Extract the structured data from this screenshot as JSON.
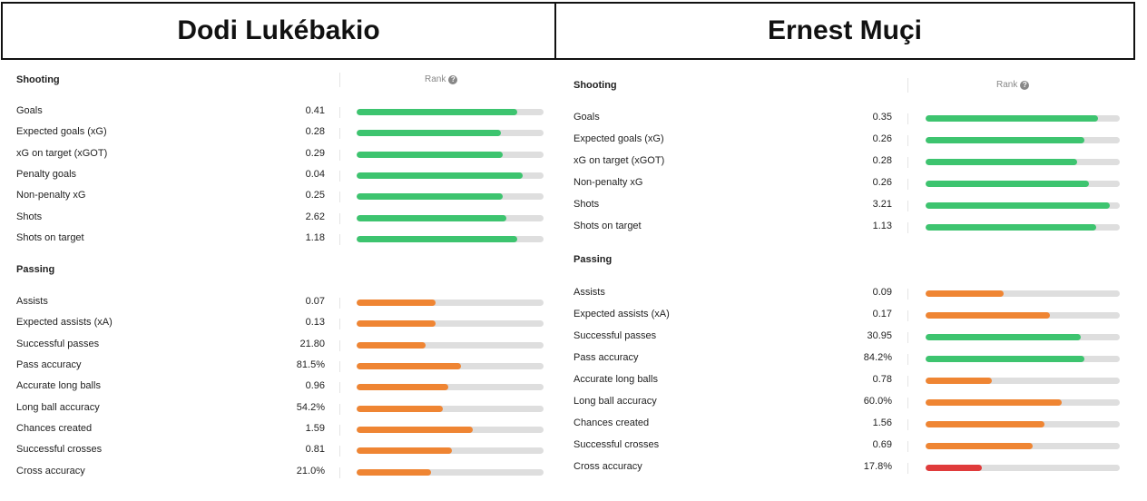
{
  "players": [
    {
      "name": "Dodi Lukébakio",
      "rank_label": "Rank",
      "sections": [
        {
          "title": "Shooting",
          "stats": [
            {
              "label": "Goals",
              "value": "0.41",
              "percentile": 0.86,
              "color": "#3dc46f"
            },
            {
              "label": "Expected goals (xG)",
              "value": "0.28",
              "percentile": 0.77,
              "color": "#3dc46f"
            },
            {
              "label": "xG on target (xGOT)",
              "value": "0.29",
              "percentile": 0.78,
              "color": "#3dc46f"
            },
            {
              "label": "Penalty goals",
              "value": "0.04",
              "percentile": 0.89,
              "color": "#3dc46f"
            },
            {
              "label": "Non-penalty xG",
              "value": "0.25",
              "percentile": 0.78,
              "color": "#3dc46f"
            },
            {
              "label": "Shots",
              "value": "2.62",
              "percentile": 0.8,
              "color": "#3dc46f"
            },
            {
              "label": "Shots on target",
              "value": "1.18",
              "percentile": 0.86,
              "color": "#3dc46f"
            }
          ]
        },
        {
          "title": "Passing",
          "stats": [
            {
              "label": "Assists",
              "value": "0.07",
              "percentile": 0.42,
              "color": "#ef8533"
            },
            {
              "label": "Expected assists (xA)",
              "value": "0.13",
              "percentile": 0.42,
              "color": "#ef8533"
            },
            {
              "label": "Successful passes",
              "value": "21.80",
              "percentile": 0.37,
              "color": "#ef8533"
            },
            {
              "label": "Pass accuracy",
              "value": "81.5%",
              "percentile": 0.56,
              "color": "#ef8533"
            },
            {
              "label": "Accurate long balls",
              "value": "0.96",
              "percentile": 0.49,
              "color": "#ef8533"
            },
            {
              "label": "Long ball accuracy",
              "value": "54.2%",
              "percentile": 0.46,
              "color": "#ef8533"
            },
            {
              "label": "Chances created",
              "value": "1.59",
              "percentile": 0.62,
              "color": "#ef8533"
            },
            {
              "label": "Successful crosses",
              "value": "0.81",
              "percentile": 0.51,
              "color": "#ef8533"
            },
            {
              "label": "Cross accuracy",
              "value": "21.0%",
              "percentile": 0.4,
              "color": "#ef8533"
            }
          ]
        }
      ]
    },
    {
      "name": "Ernest Muçi",
      "rank_label": "Rank",
      "sections": [
        {
          "title": "Shooting",
          "stats": [
            {
              "label": "Goals",
              "value": "0.35",
              "percentile": 0.89,
              "color": "#3dc46f"
            },
            {
              "label": "Expected goals (xG)",
              "value": "0.26",
              "percentile": 0.82,
              "color": "#3dc46f"
            },
            {
              "label": "xG on target (xGOT)",
              "value": "0.28",
              "percentile": 0.78,
              "color": "#3dc46f"
            },
            {
              "label": "Non-penalty xG",
              "value": "0.26",
              "percentile": 0.84,
              "color": "#3dc46f"
            },
            {
              "label": "Shots",
              "value": "3.21",
              "percentile": 0.95,
              "color": "#3dc46f"
            },
            {
              "label": "Shots on target",
              "value": "1.13",
              "percentile": 0.88,
              "color": "#3dc46f"
            }
          ]
        },
        {
          "title": "Passing",
          "stats": [
            {
              "label": "Assists",
              "value": "0.09",
              "percentile": 0.4,
              "color": "#ef8533"
            },
            {
              "label": "Expected assists (xA)",
              "value": "0.17",
              "percentile": 0.64,
              "color": "#ef8533"
            },
            {
              "label": "Successful passes",
              "value": "30.95",
              "percentile": 0.8,
              "color": "#3dc46f"
            },
            {
              "label": "Pass accuracy",
              "value": "84.2%",
              "percentile": 0.82,
              "color": "#3dc46f"
            },
            {
              "label": "Accurate long balls",
              "value": "0.78",
              "percentile": 0.34,
              "color": "#ef8533"
            },
            {
              "label": "Long ball accuracy",
              "value": "60.0%",
              "percentile": 0.7,
              "color": "#ef8533"
            },
            {
              "label": "Chances created",
              "value": "1.56",
              "percentile": 0.61,
              "color": "#ef8533"
            },
            {
              "label": "Successful crosses",
              "value": "0.69",
              "percentile": 0.55,
              "color": "#ef8533"
            },
            {
              "label": "Cross accuracy",
              "value": "17.8%",
              "percentile": 0.29,
              "color": "#e03b3b"
            }
          ]
        }
      ]
    }
  ]
}
